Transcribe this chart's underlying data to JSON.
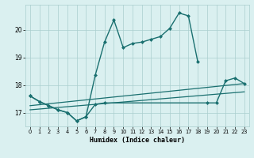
{
  "xlabel": "Humidex (Indice chaleur)",
  "bg_color": "#daf0f0",
  "grid_color": "#aacece",
  "line_color": "#1a7070",
  "xlim": [
    -0.5,
    23.5
  ],
  "ylim": [
    16.5,
    20.9
  ],
  "yticks": [
    17,
    18,
    19,
    20
  ],
  "xticks": [
    0,
    1,
    2,
    3,
    4,
    5,
    6,
    7,
    8,
    9,
    10,
    11,
    12,
    13,
    14,
    15,
    16,
    17,
    18,
    19,
    20,
    21,
    22,
    23
  ],
  "lines": [
    {
      "x": [
        0,
        1,
        2,
        3,
        4,
        5,
        6,
        7,
        8,
        9,
        10,
        11,
        12,
        13,
        14,
        15,
        16,
        17,
        18
      ],
      "y": [
        17.6,
        17.4,
        17.25,
        17.1,
        17.0,
        16.7,
        16.85,
        18.35,
        19.55,
        20.35,
        19.35,
        19.5,
        19.55,
        19.65,
        19.75,
        20.05,
        20.6,
        20.5,
        18.85
      ],
      "marker": "D",
      "markersize": 2.5,
      "linewidth": 1.0
    },
    {
      "x": [
        0,
        1,
        2,
        3,
        4,
        5,
        6,
        7,
        8,
        19,
        20,
        21,
        22,
        23
      ],
      "y": [
        17.6,
        17.4,
        17.25,
        17.1,
        17.0,
        16.7,
        16.85,
        17.3,
        17.35,
        17.35,
        17.35,
        18.15,
        18.25,
        18.05
      ],
      "marker": "D",
      "markersize": 2.5,
      "linewidth": 1.0
    },
    {
      "x": [
        0,
        23
      ],
      "y": [
        17.25,
        18.05
      ],
      "marker": null,
      "linewidth": 0.9
    },
    {
      "x": [
        0,
        23
      ],
      "y": [
        17.1,
        17.75
      ],
      "marker": null,
      "linewidth": 0.9
    }
  ]
}
